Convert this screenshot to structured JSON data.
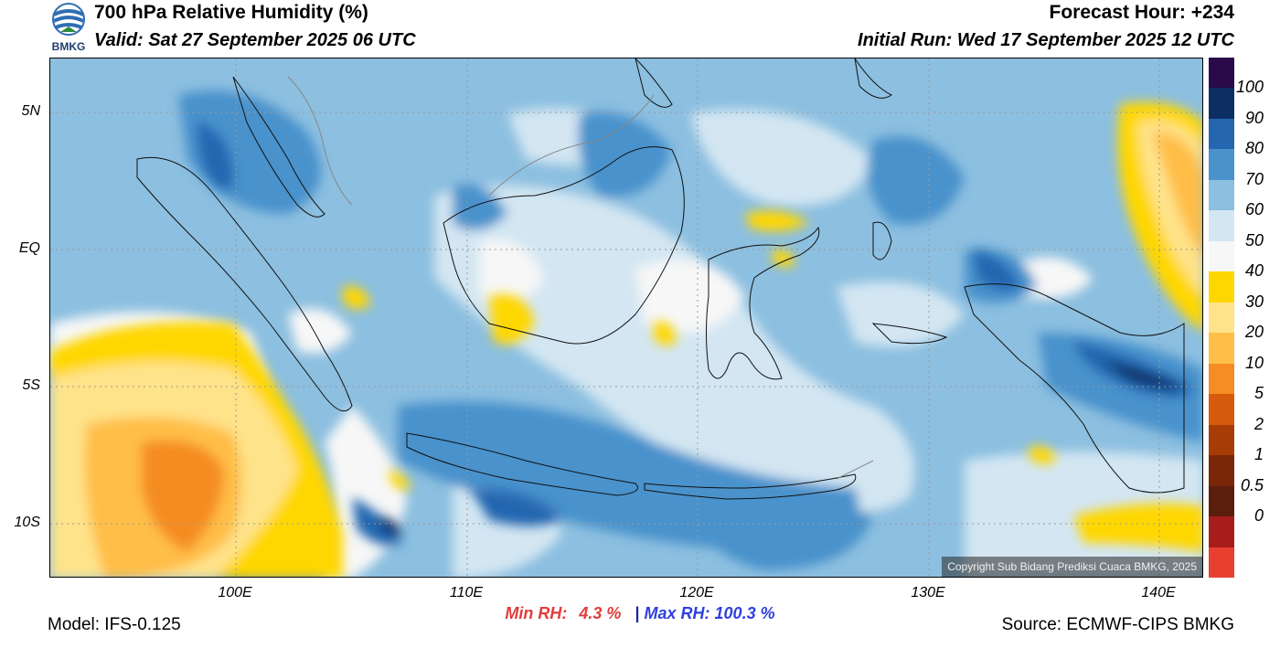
{
  "header": {
    "title": "700 hPa Relative Humidity (%)",
    "valid": "Valid: Sat 27 September 2025 06 UTC",
    "forecast_hour": "Forecast Hour: +234",
    "initial_run": "Initial Run: Wed 17 September 2025 12 UTC",
    "logo_text": "BMKG"
  },
  "map": {
    "lat_ticks": [
      "5N",
      "EQ",
      "5S",
      "10S"
    ],
    "lon_ticks": [
      "100E",
      "110E",
      "120E",
      "130E",
      "140E"
    ],
    "copyright": "Copyright Sub Bidang Prediksi Cuaca BMKG, 2025"
  },
  "colorbar": {
    "labels": [
      "100",
      "90",
      "80",
      "70",
      "60",
      "50",
      "40",
      "30",
      "20",
      "10",
      "5",
      "2",
      "1",
      "0.5",
      "0"
    ],
    "colors": [
      "#2a0a4a",
      "#0d2e63",
      "#2466b0",
      "#4a92cc",
      "#8cbfe0",
      "#d3e6f2",
      "#f7f7f7",
      "#ffd700",
      "#ffe38a",
      "#ffbe47",
      "#f58c24",
      "#d85a0c",
      "#a63c06",
      "#7a2608",
      "#5a1e0c",
      "#a81c1c",
      "#e84030"
    ]
  },
  "stats": {
    "min_label": "Min RH:",
    "min_value": "4.3 %",
    "separator": "|",
    "max_label": "Max RH:",
    "max_value": "100.3 %"
  },
  "footer": {
    "model": "Model: IFS-0.125",
    "source": "Source: ECMWF-CIPS BMKG"
  }
}
